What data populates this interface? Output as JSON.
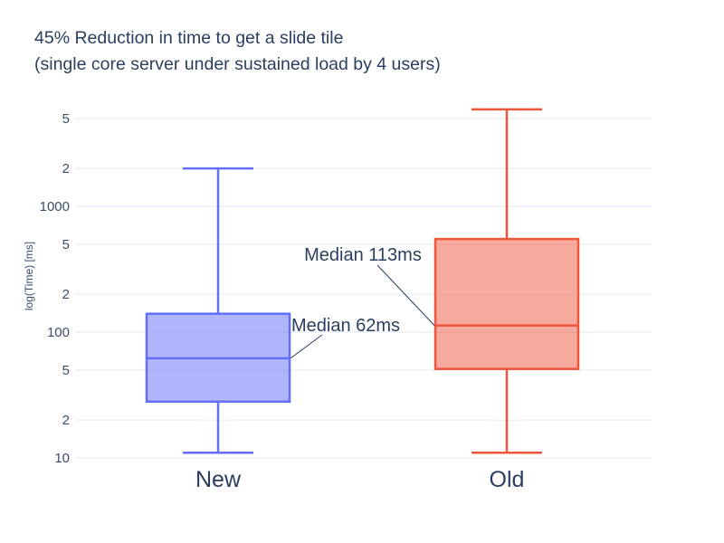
{
  "title": {
    "line1": "45% Reduction in time to get a slide tile",
    "line2": "(single core server under sustained load by 4 users)"
  },
  "colors": {
    "title_text": "#2a3f5f",
    "axis_text": "#3b4d6b",
    "grid": "#e9eef7",
    "background": "#ffffff",
    "annotation_text": "#2a3f5f",
    "annotation_line": "#2a3f5f",
    "new_color": "#636efa",
    "old_color": "#ef553b"
  },
  "chart_data": {
    "type": "box",
    "title": "45% Reduction in time to get a slide tile (single core server under sustained load by 4 users)",
    "xlabel": "",
    "ylabel": "log(Time) [ms]",
    "yscale": "log",
    "ylim": [
      10,
      6300
    ],
    "grid": true,
    "legend": "none",
    "ytick_values": [
      10,
      20,
      50,
      100,
      200,
      500,
      1000,
      2000,
      5000
    ],
    "ytick_labels": [
      "10",
      "2",
      "5",
      "100",
      "2",
      "5",
      "1000",
      "2",
      "5"
    ],
    "categories": [
      "New",
      "Old"
    ],
    "series": [
      {
        "name": "New",
        "min": 11,
        "q1": 28,
        "median": 62,
        "q3": 140,
        "max": 2000,
        "color": "#636efa"
      },
      {
        "name": "Old",
        "min": 11,
        "q1": 51,
        "median": 113,
        "q3": 550,
        "max": 5900,
        "color": "#ef553b"
      }
    ],
    "annotations": [
      {
        "text": "Median 113ms",
        "target_series": "Old",
        "value": 113
      },
      {
        "text": "Median 62ms",
        "target_series": "New",
        "value": 62
      }
    ]
  }
}
